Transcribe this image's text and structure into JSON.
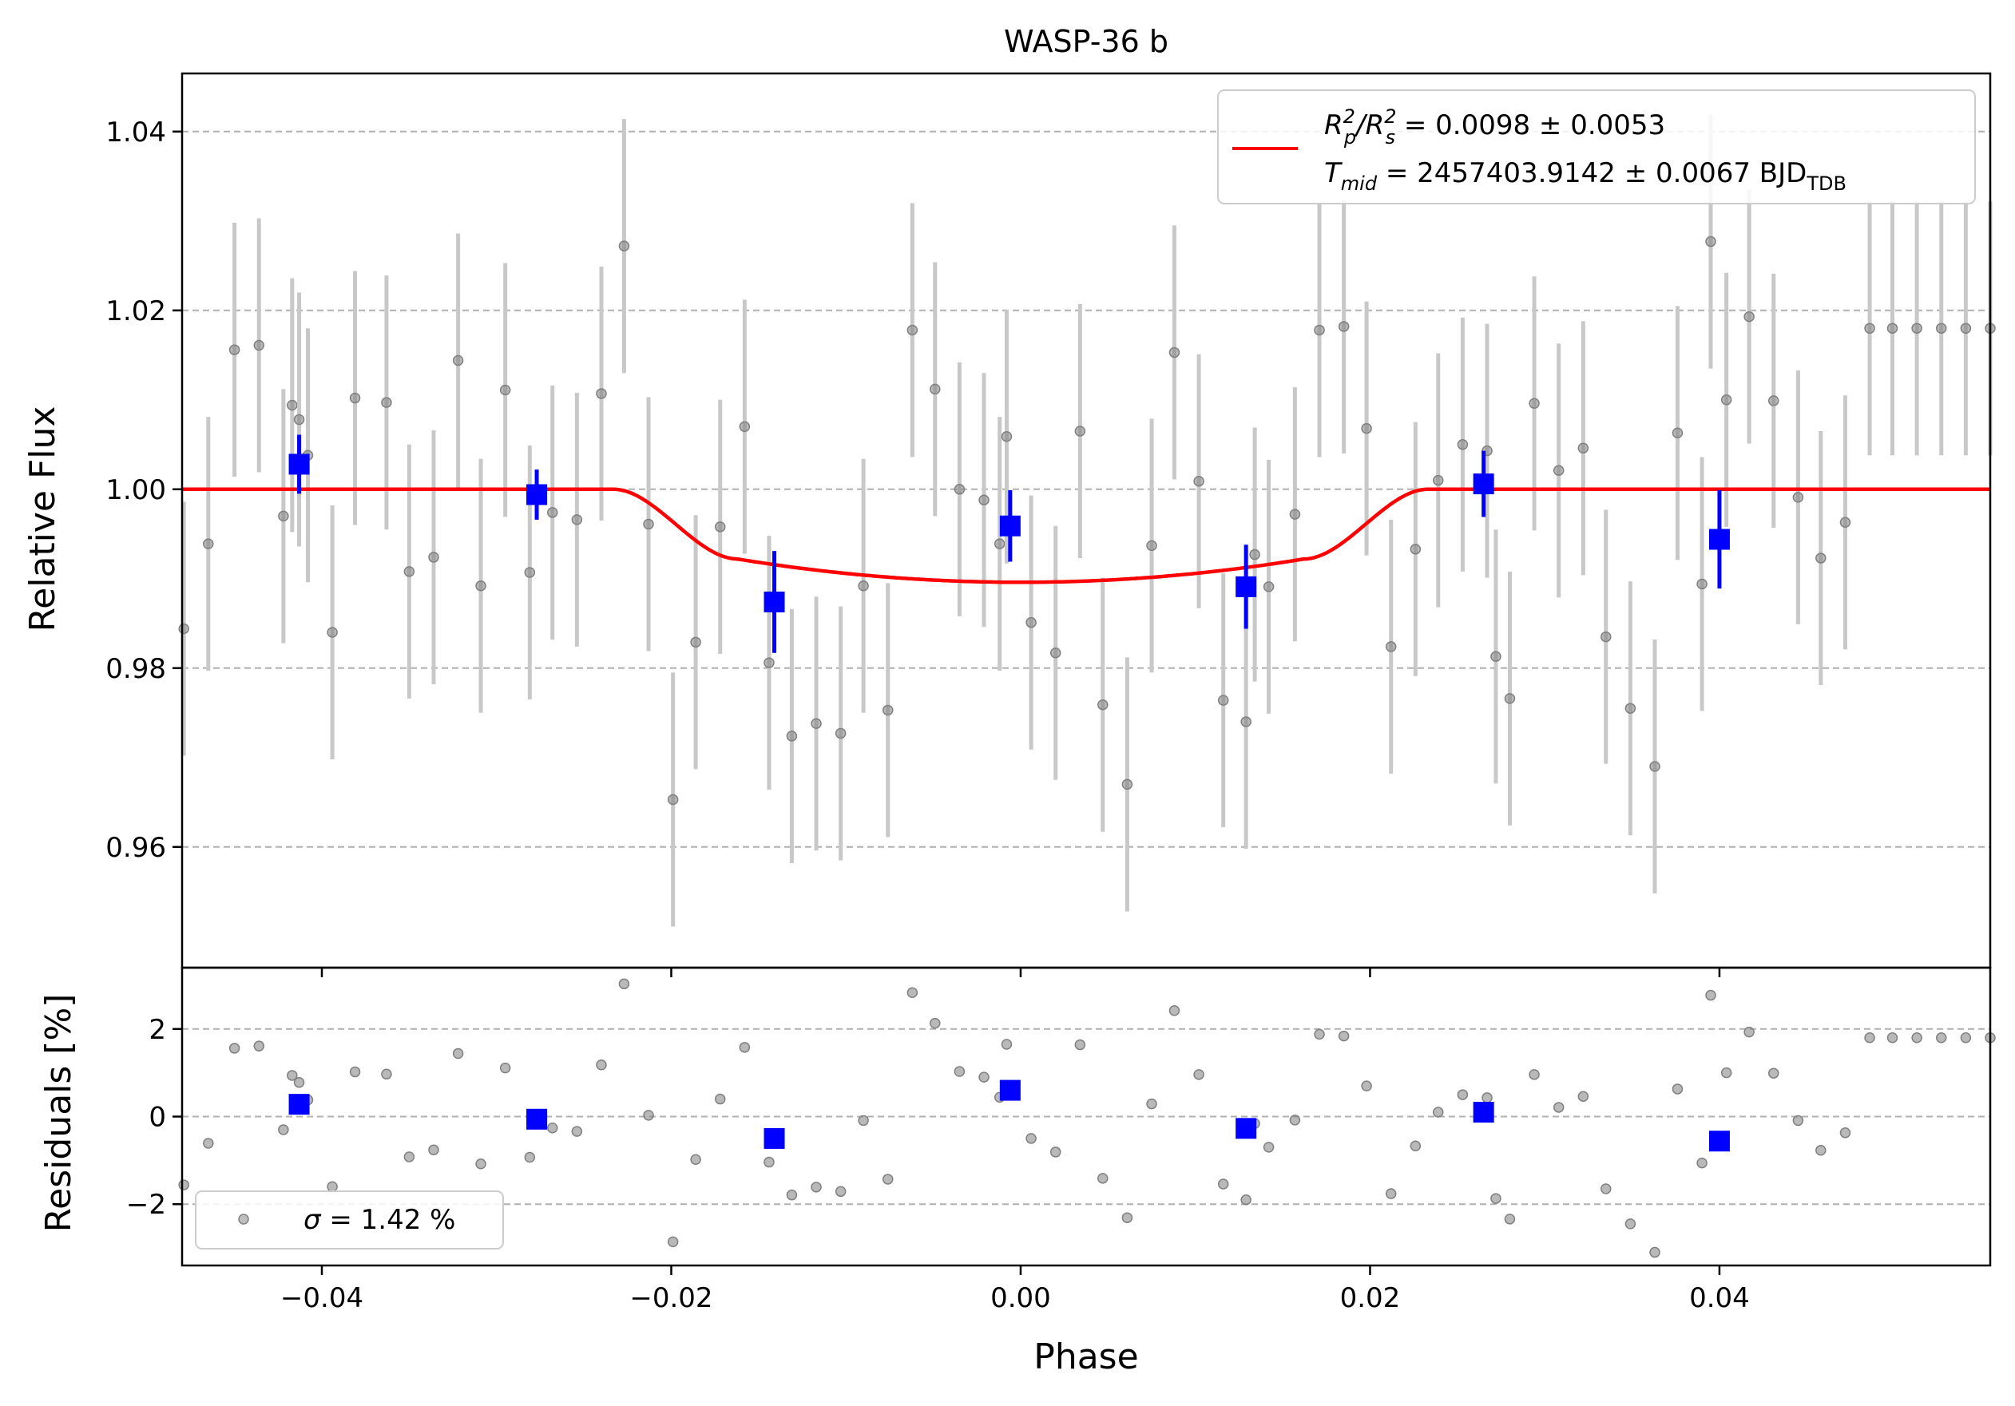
{
  "chart_data": {
    "type": "scatter",
    "title": "WASP-36 b",
    "xlabel": "Phase",
    "colors": {
      "raw_points": "#808080",
      "raw_errorbars": "#c8c8c8",
      "binned": "#0000ff",
      "model": "#ff0000",
      "grid": "#b0b0b0"
    },
    "xlim": [
      -0.048,
      0.0555
    ],
    "x_ticks": [
      -0.04,
      -0.02,
      0.0,
      0.02,
      0.04
    ],
    "x_tick_labels": [
      "−0.04",
      "−0.02",
      "0.00",
      "0.02",
      "0.04"
    ],
    "top_panel": {
      "ylabel": "Relative Flux",
      "ylim": [
        0.9465,
        1.0465
      ],
      "y_ticks": [
        0.96,
        0.98,
        1.0,
        1.02,
        1.04
      ],
      "y_tick_labels": [
        "0.96",
        "0.98",
        "1.00",
        "1.02",
        "1.04"
      ],
      "grid": "horizontal-dashed",
      "legend": {
        "placement": "top-right",
        "line1": {
          "lhs_base_a": "R",
          "lhs_sup_a": "2",
          "lhs_sub_a": "p",
          "slash": "/",
          "lhs_base_b": "R",
          "lhs_sup_b": "2",
          "lhs_sub_b": "s",
          "rhs": " = 0.0098 ± 0.0053"
        },
        "line2": {
          "lhs_base": "T",
          "lhs_sub": "mid",
          "rhs": " = 2457403.9142 ± 0.0067 BJD",
          "unit_sub": "TDB"
        }
      },
      "raw_series": {
        "x": [
          -0.0479,
          -0.0465,
          -0.045,
          -0.0436,
          -0.0422,
          -0.0417,
          -0.0413,
          -0.0408,
          -0.0394,
          -0.0381,
          -0.0363,
          -0.035,
          -0.0336,
          -0.0322,
          -0.0309,
          -0.0295,
          -0.0281,
          -0.0268,
          -0.0254,
          -0.024,
          -0.0227,
          -0.0213,
          -0.0199,
          -0.0186,
          -0.0172,
          -0.0158,
          -0.0144,
          -0.0131,
          -0.0117,
          -0.0103,
          -0.009,
          -0.0076,
          -0.0062,
          -0.0049,
          -0.0035,
          -0.0021,
          -0.0012,
          -0.0008,
          0.0006,
          0.002,
          0.0034,
          0.0047,
          0.0061,
          0.0075,
          0.0088,
          0.0102,
          0.0116,
          0.0129,
          0.0134,
          0.0142,
          0.0157,
          0.0171,
          0.0185,
          0.0198,
          0.0212,
          0.0226,
          0.0239,
          0.0253,
          0.0267,
          0.0272,
          0.028,
          0.0294,
          0.0308,
          0.0322,
          0.0335,
          0.0349,
          0.0363,
          0.0376,
          0.039,
          0.0395,
          0.0404,
          0.0417,
          0.0431,
          0.0445,
          0.0458,
          0.0472,
          0.0486,
          0.0499,
          0.0513,
          0.0527,
          0.0541,
          0.0555
        ],
        "y": [
          0.9844,
          0.9939,
          1.0156,
          1.0161,
          0.997,
          1.0094,
          1.0078,
          1.0038,
          0.984,
          1.0102,
          1.0097,
          0.9908,
          0.9924,
          1.0144,
          0.9892,
          1.0111,
          0.9907,
          0.9974,
          0.9966,
          1.0107,
          1.0272,
          0.9961,
          0.9653,
          0.9829,
          0.9958,
          1.007,
          0.9806,
          0.9724,
          0.9738,
          0.9727,
          0.9892,
          0.9753,
          1.0178,
          1.0112,
          1.0,
          0.9988,
          0.9939,
          1.0059,
          0.9851,
          0.9817,
          1.0065,
          0.9759,
          0.967,
          0.9937,
          1.0153,
          1.0009,
          0.9764,
          0.974,
          0.9927,
          0.9891,
          0.9972,
          1.0178,
          1.0182,
          1.0068,
          0.9824,
          0.9933,
          1.001,
          1.005,
          1.0043,
          0.9813,
          0.9766,
          1.0096,
          1.0021,
          1.0046,
          0.9835,
          0.9755,
          0.969,
          1.0063,
          0.9894,
          1.0277,
          1.01,
          1.0193,
          1.0099,
          0.9991,
          0.9923,
          0.9963,
          1.018,
          1.018,
          1.018,
          1.018,
          1.018,
          1.018
        ],
        "err": [
          0.0142,
          0.0142,
          0.0142,
          0.0142,
          0.0142,
          0.0142,
          0.0142,
          0.0142,
          0.0142,
          0.0142,
          0.0142,
          0.0142,
          0.0142,
          0.0142,
          0.0142,
          0.0142,
          0.0142,
          0.0142,
          0.0142,
          0.0142,
          0.0142,
          0.0142,
          0.0142,
          0.0142,
          0.0142,
          0.0142,
          0.0142,
          0.0142,
          0.0142,
          0.0142,
          0.0142,
          0.0142,
          0.0142,
          0.0142,
          0.0142,
          0.0142,
          0.0142,
          0.0142,
          0.0142,
          0.0142,
          0.0142,
          0.0142,
          0.0142,
          0.0142,
          0.0142,
          0.0142,
          0.0142,
          0.0142,
          0.0142,
          0.0142,
          0.0142,
          0.0142,
          0.0142,
          0.0142,
          0.0142,
          0.0142,
          0.0142,
          0.0142,
          0.0142,
          0.0142,
          0.0142,
          0.0142,
          0.0142,
          0.0142,
          0.0142,
          0.0142,
          0.0142,
          0.0142,
          0.0142,
          0.0142,
          0.0142,
          0.0142,
          0.0142,
          0.0142,
          0.0142,
          0.0142,
          0.0142,
          0.0142,
          0.0142,
          0.0142,
          0.0142,
          0.0142
        ]
      },
      "binned_series": {
        "x": [
          -0.0413,
          -0.0277,
          -0.0141,
          -0.0006,
          0.0129,
          0.0265,
          0.04
        ],
        "y": [
          1.0028,
          0.9994,
          0.9874,
          0.9959,
          0.9891,
          1.0006,
          0.9944
        ],
        "err": [
          0.0033,
          0.0028,
          0.0057,
          0.004,
          0.0047,
          0.0037,
          0.0055
        ]
      },
      "model": {
        "depth": 0.0098,
        "t_mid_phase": 0.0,
        "ingress_start": -0.0233,
        "ingress_end": -0.0162,
        "egress_start": 0.0162,
        "egress_end": 0.0233,
        "min_flux": 0.9896,
        "contact_flux": 0.9922
      }
    },
    "bottom_panel": {
      "ylabel": "Residuals [%]",
      "ylim": [
        -3.4,
        3.4
      ],
      "y_ticks": [
        -2,
        0,
        2
      ],
      "y_tick_labels": [
        "−2",
        "0",
        "2"
      ],
      "grid": "horizontal-dashed",
      "legend": {
        "placement": "bottom-left",
        "symbol": "σ",
        "text": " = 1.42 %"
      },
      "raw_series": {
        "x": [
          -0.0479,
          -0.0465,
          -0.045,
          -0.0436,
          -0.0422,
          -0.0417,
          -0.0413,
          -0.0408,
          -0.0394,
          -0.0381,
          -0.0363,
          -0.035,
          -0.0336,
          -0.0322,
          -0.0309,
          -0.0295,
          -0.0281,
          -0.0268,
          -0.0254,
          -0.024,
          -0.0227,
          -0.0213,
          -0.0199,
          -0.0186,
          -0.0172,
          -0.0158,
          -0.0144,
          -0.0131,
          -0.0117,
          -0.0103,
          -0.009,
          -0.0076,
          -0.0062,
          -0.0049,
          -0.0035,
          -0.0021,
          -0.0012,
          -0.0008,
          0.0006,
          0.002,
          0.0034,
          0.0047,
          0.0061,
          0.0075,
          0.0088,
          0.0102,
          0.0116,
          0.0129,
          0.0134,
          0.0142,
          0.0157,
          0.0171,
          0.0185,
          0.0198,
          0.0212,
          0.0226,
          0.0239,
          0.0253,
          0.0267,
          0.0272,
          0.028,
          0.0294,
          0.0308,
          0.0322,
          0.0335,
          0.0349,
          0.0363,
          0.0376,
          0.039,
          0.0395,
          0.0404,
          0.0417,
          0.0431,
          0.0445,
          0.0458,
          0.0472,
          0.0486,
          0.0499,
          0.0513,
          0.0527,
          0.0541,
          0.0555
        ],
        "y": [
          -1.56,
          -0.61,
          1.56,
          1.61,
          -0.3,
          0.94,
          0.78,
          0.38,
          -1.6,
          1.02,
          0.97,
          -0.92,
          -0.76,
          1.44,
          -1.08,
          1.11,
          -0.93,
          -0.26,
          -0.34,
          1.18,
          3.03,
          0.03,
          -2.86,
          -0.98,
          0.4,
          1.58,
          -1.04,
          -1.79,
          -1.61,
          -1.71,
          -0.09,
          -1.43,
          2.83,
          2.13,
          1.03,
          0.9,
          0.44,
          1.65,
          -0.5,
          -0.81,
          1.64,
          -1.41,
          -2.31,
          0.29,
          2.42,
          0.96,
          -1.54,
          -1.9,
          -0.16,
          -0.7,
          -0.08,
          1.88,
          1.84,
          0.7,
          -1.76,
          -0.67,
          0.1,
          0.5,
          0.43,
          -1.87,
          -2.34,
          0.96,
          0.21,
          0.46,
          -1.65,
          -2.45,
          -3.1,
          0.63,
          -1.06,
          2.77,
          1.0,
          1.93,
          0.99,
          -0.09,
          -0.77,
          -0.37,
          1.8,
          1.8,
          1.8,
          1.8,
          1.8,
          1.8
        ]
      },
      "binned_series": {
        "x": [
          -0.0413,
          -0.0277,
          -0.0141,
          -0.0006,
          0.0129,
          0.0265,
          0.04
        ],
        "y": [
          0.28,
          -0.06,
          -0.5,
          0.6,
          -0.27,
          0.1,
          -0.56
        ]
      }
    }
  }
}
